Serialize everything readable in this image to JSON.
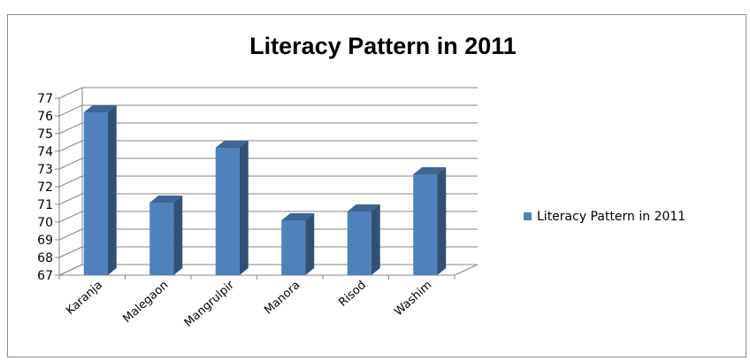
{
  "chart_data": {
    "type": "bar",
    "title": "Literacy Pattern in 2011",
    "categories": [
      "Karanja",
      "Malegaon",
      "Mangrulpir",
      "Manora",
      "Risod",
      "Washim"
    ],
    "series": [
      {
        "name": "Literacy Pattern in 2011",
        "values": [
          76.2,
          71.1,
          74.2,
          70.1,
          70.6,
          72.7
        ],
        "color": "#4f81bd"
      }
    ],
    "ylim": [
      67,
      77
    ],
    "yticks": [
      67,
      68,
      69,
      70,
      71,
      72,
      73,
      74,
      75,
      76,
      77
    ],
    "grid": true,
    "legend": "right",
    "style": "3d-column"
  }
}
